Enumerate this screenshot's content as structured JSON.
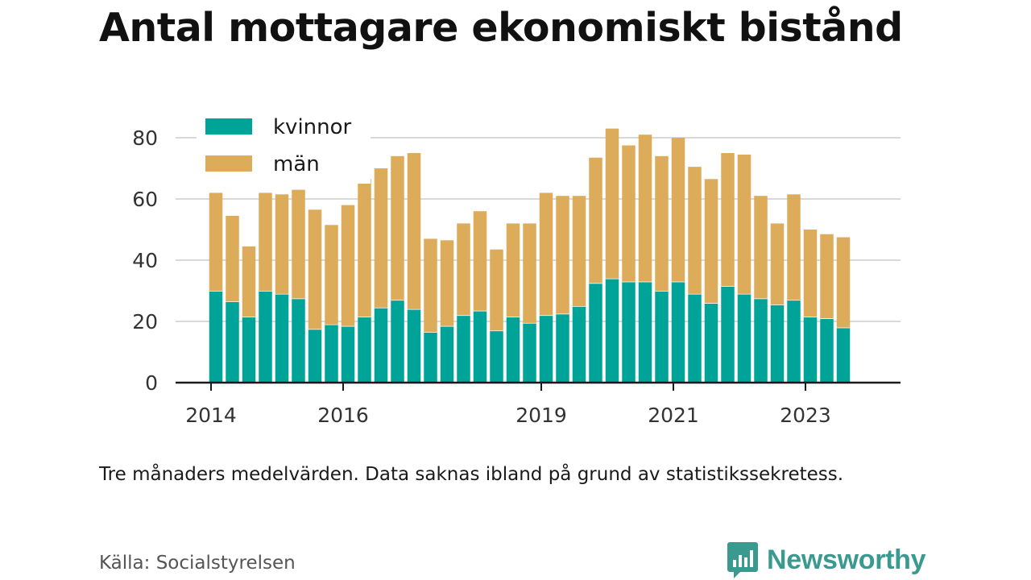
{
  "header": {
    "title": "Antal mottagare ekonomiskt bistånd"
  },
  "footer": {
    "note": "Tre månaders medelvärden. Data saknas ibland på grund av statistikssekretess.",
    "source": "Källa: Socialstyrelsen",
    "brand": "Newsworthy",
    "brand_icon": "newsworthy-logo-icon",
    "brand_color": "#3a9a8f"
  },
  "chart_data": {
    "type": "bar",
    "stacked": true,
    "title": "Antal mottagare ekonomiskt bistånd",
    "xlabel": "",
    "ylabel": "",
    "x_axis": "date",
    "x_ticks": [
      "2014",
      "2016",
      "2019",
      "2021",
      "2023"
    ],
    "y_ticks": [
      0,
      20,
      40,
      60,
      80
    ],
    "ylim": [
      0,
      90
    ],
    "grid": true,
    "legend": "top-left",
    "x": [
      "2014-Q2",
      "2014-Q3",
      "2014-Q4",
      "2015-Q1",
      "2015-Q2",
      "2015-Q3",
      "2015-Q4",
      "2016-Q1",
      "2016-Q2",
      "2016-Q3",
      "2016-Q4",
      "2017-Q1",
      "2017-Q2",
      "2017-Q3",
      "2017-Q4",
      "2018-Q1",
      "2018-Q2",
      "2018-Q3",
      "2018-Q4",
      "2019-Q1",
      "2019-Q2",
      "2019-Q3",
      "2019-Q4",
      "2020-Q1",
      "2020-Q2",
      "2020-Q3",
      "2020-Q4",
      "2021-Q1",
      "2021-Q2",
      "2021-Q3",
      "2021-Q4",
      "2022-Q1",
      "2022-Q2",
      "2022-Q3",
      "2022-Q4",
      "2023-Q1",
      "2023-Q2",
      "2023-Q3",
      "2023-Q4"
    ],
    "series": [
      {
        "name": "kvinnor",
        "color": "#00a398",
        "values": [
          30,
          26.5,
          21.5,
          30,
          29,
          27.5,
          17.5,
          19,
          18.5,
          21.5,
          24.5,
          27,
          24,
          16.5,
          18.5,
          22,
          23.5,
          17,
          21.5,
          19.5,
          22,
          22.5,
          25,
          32.5,
          34,
          33,
          33,
          30,
          33,
          29,
          26,
          31.5,
          29,
          27.5,
          25.5,
          27,
          21.5,
          21,
          18
        ]
      },
      {
        "name": "män",
        "color": "#dcac5b",
        "values": [
          32,
          28,
          23,
          32,
          32.5,
          35.5,
          39,
          32.5,
          39.5,
          45,
          45.5,
          47,
          51,
          30.5,
          28,
          30,
          32.5,
          26.5,
          30.5,
          32.5,
          40,
          38.5,
          36,
          41,
          49,
          44.5,
          48,
          44,
          47,
          41.5,
          40.5,
          43.5,
          45.5,
          33.5,
          26.5,
          34.5,
          28.5,
          27.5,
          29.5
        ]
      }
    ]
  }
}
